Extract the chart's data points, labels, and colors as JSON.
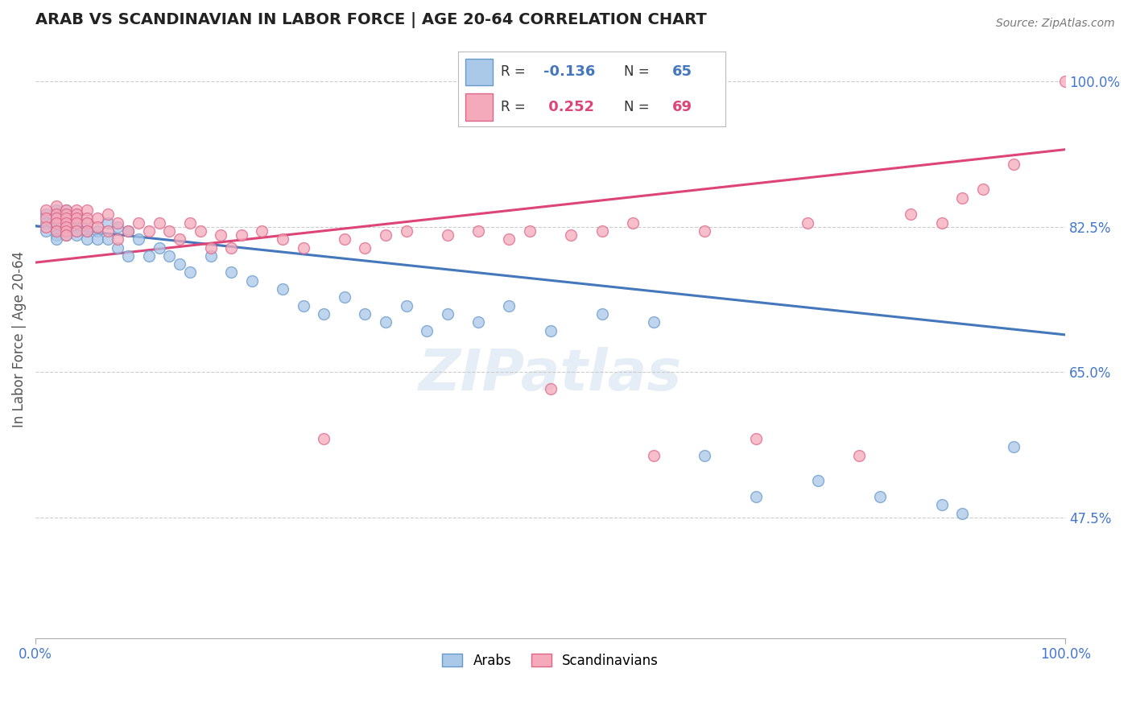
{
  "title": "ARAB VS SCANDINAVIAN IN LABOR FORCE | AGE 20-64 CORRELATION CHART",
  "source": "Source: ZipAtlas.com",
  "ylabel": "In Labor Force | Age 20-64",
  "xlim": [
    0.0,
    1.0
  ],
  "ylim": [
    0.33,
    1.05
  ],
  "yticks": [
    0.475,
    0.65,
    0.825,
    1.0
  ],
  "ytick_labels": [
    "47.5%",
    "65.0%",
    "82.5%",
    "100.0%"
  ],
  "arab_color": "#aac8e8",
  "scand_color": "#f5aabb",
  "arab_edge": "#6699cc",
  "scand_edge": "#dd6688",
  "arab_line_color": "#4477bb",
  "scand_line_color": "#dd4477",
  "tick_label_color": "#4477cc",
  "arab_x": [
    0.01,
    0.01,
    0.01,
    0.02,
    0.02,
    0.02,
    0.02,
    0.02,
    0.02,
    0.02,
    0.02,
    0.03,
    0.03,
    0.03,
    0.03,
    0.03,
    0.03,
    0.03,
    0.04,
    0.04,
    0.04,
    0.04,
    0.04,
    0.04,
    0.05,
    0.05,
    0.05,
    0.06,
    0.06,
    0.07,
    0.07,
    0.08,
    0.08,
    0.09,
    0.09,
    0.1,
    0.11,
    0.12,
    0.13,
    0.14,
    0.15,
    0.17,
    0.19,
    0.21,
    0.24,
    0.26,
    0.28,
    0.3,
    0.32,
    0.34,
    0.36,
    0.38,
    0.4,
    0.43,
    0.46,
    0.5,
    0.55,
    0.6,
    0.65,
    0.7,
    0.76,
    0.82,
    0.88,
    0.9,
    0.95
  ],
  "arab_y": [
    0.84,
    0.83,
    0.82,
    0.845,
    0.84,
    0.835,
    0.83,
    0.825,
    0.82,
    0.815,
    0.81,
    0.845,
    0.84,
    0.835,
    0.83,
    0.825,
    0.82,
    0.815,
    0.84,
    0.835,
    0.83,
    0.825,
    0.82,
    0.815,
    0.83,
    0.82,
    0.81,
    0.82,
    0.81,
    0.83,
    0.81,
    0.825,
    0.8,
    0.82,
    0.79,
    0.81,
    0.79,
    0.8,
    0.79,
    0.78,
    0.77,
    0.79,
    0.77,
    0.76,
    0.75,
    0.73,
    0.72,
    0.74,
    0.72,
    0.71,
    0.73,
    0.7,
    0.72,
    0.71,
    0.73,
    0.7,
    0.72,
    0.71,
    0.55,
    0.5,
    0.52,
    0.5,
    0.49,
    0.48,
    0.56
  ],
  "scand_x": [
    0.01,
    0.01,
    0.01,
    0.02,
    0.02,
    0.02,
    0.02,
    0.02,
    0.03,
    0.03,
    0.03,
    0.03,
    0.03,
    0.03,
    0.03,
    0.04,
    0.04,
    0.04,
    0.04,
    0.04,
    0.05,
    0.05,
    0.05,
    0.05,
    0.06,
    0.06,
    0.07,
    0.07,
    0.08,
    0.08,
    0.09,
    0.1,
    0.11,
    0.12,
    0.13,
    0.14,
    0.15,
    0.16,
    0.17,
    0.18,
    0.19,
    0.2,
    0.22,
    0.24,
    0.26,
    0.28,
    0.3,
    0.32,
    0.34,
    0.36,
    0.4,
    0.43,
    0.46,
    0.48,
    0.5,
    0.52,
    0.55,
    0.58,
    0.6,
    0.65,
    0.7,
    0.75,
    0.8,
    0.85,
    0.88,
    0.9,
    0.92,
    0.95,
    1.0
  ],
  "scand_y": [
    0.845,
    0.835,
    0.825,
    0.85,
    0.84,
    0.835,
    0.83,
    0.82,
    0.845,
    0.84,
    0.835,
    0.83,
    0.825,
    0.82,
    0.815,
    0.845,
    0.84,
    0.835,
    0.83,
    0.82,
    0.845,
    0.835,
    0.83,
    0.82,
    0.835,
    0.825,
    0.84,
    0.82,
    0.83,
    0.81,
    0.82,
    0.83,
    0.82,
    0.83,
    0.82,
    0.81,
    0.83,
    0.82,
    0.8,
    0.815,
    0.8,
    0.815,
    0.82,
    0.81,
    0.8,
    0.57,
    0.81,
    0.8,
    0.815,
    0.82,
    0.815,
    0.82,
    0.81,
    0.82,
    0.63,
    0.815,
    0.82,
    0.83,
    0.55,
    0.82,
    0.57,
    0.83,
    0.55,
    0.84,
    0.83,
    0.86,
    0.87,
    0.9,
    1.0
  ],
  "arab_line_start_y": 0.826,
  "arab_line_end_y": 0.695,
  "scand_line_start_y": 0.782,
  "scand_line_end_y": 0.918,
  "watermark_text": "ZIPatlas",
  "background_color": "#ffffff",
  "grid_color": "#cccccc",
  "title_color": "#222222",
  "axis_label_color": "#555555",
  "title_fontsize": 14,
  "marker_size": 100,
  "line_width": 2.2
}
